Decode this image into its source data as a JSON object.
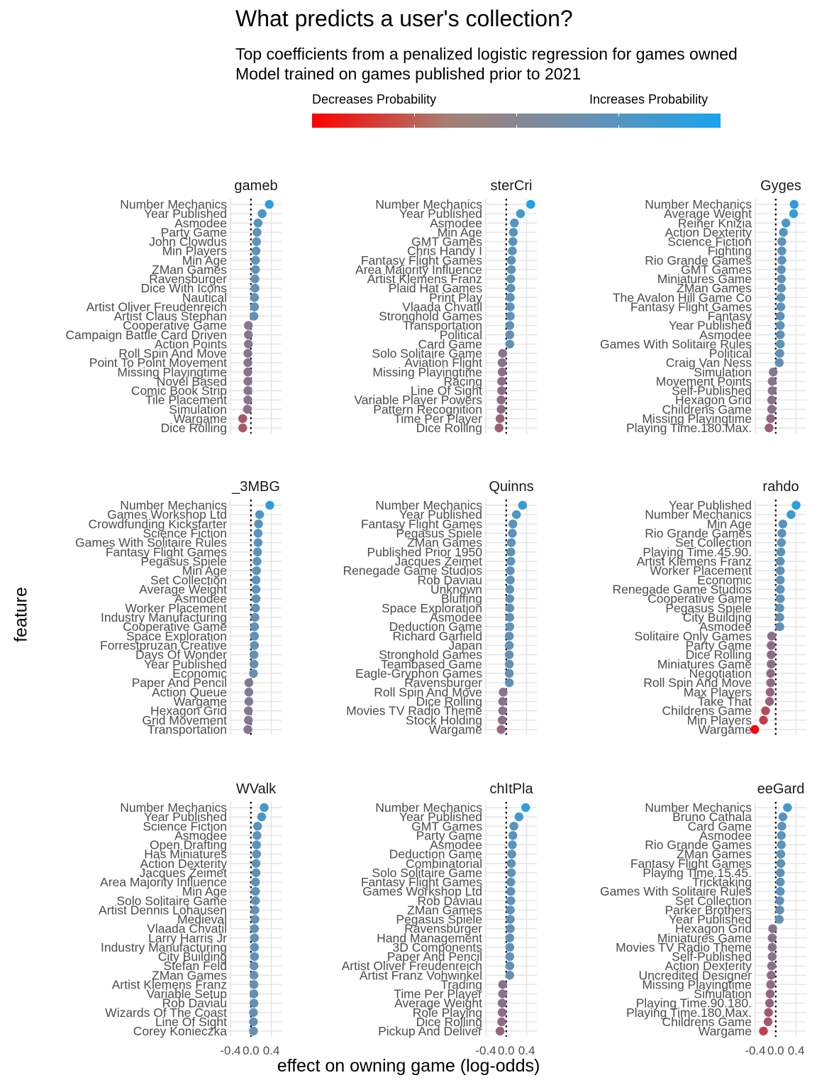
{
  "chart_data": {
    "type": "scatter",
    "title": "What predicts a user's collection?",
    "subtitle": [
      "Top coefficients from a penalized logistic regression for games owned",
      "Model trained on games published prior to 2021"
    ],
    "xlabel": "effect on owning game (log-odds)",
    "ylabel": "feature",
    "legend": {
      "low_label": "Decreases Probability",
      "high_label": "Increases Probability",
      "placement": "top",
      "low_color": "#ff0000",
      "high_color": "#1aa3ec"
    },
    "x_ticks": [
      "-0.4",
      "0.0",
      "0.4"
    ],
    "xlim": [
      -0.4,
      0.6
    ],
    "reference_line": 0,
    "panels": [
      {
        "title": "gameb",
        "features": [
          [
            "Number Mechanics",
            0.36
          ],
          [
            "Year Published",
            0.22
          ],
          [
            "Asmodee",
            0.14
          ],
          [
            "Party Game",
            0.12
          ],
          [
            "John Clowdus",
            0.11
          ],
          [
            "Min Players",
            0.1
          ],
          [
            "Min Age",
            0.09
          ],
          [
            "ZMan Games",
            0.09
          ],
          [
            "Ravensburger",
            0.08
          ],
          [
            "Dice With Icons",
            0.08
          ],
          [
            "Nautical",
            0.07
          ],
          [
            "Artist Oliver Freudenreich",
            0.07
          ],
          [
            "Artist Claus Stephan",
            0.06
          ],
          [
            "Cooperative Game",
            -0.05
          ],
          [
            "Campaign Battle Card Driven",
            -0.05
          ],
          [
            "Action Points",
            -0.05
          ],
          [
            "Roll Spin And Move",
            -0.06
          ],
          [
            "Point To Point Movement",
            -0.06
          ],
          [
            "Missing Playingtime",
            -0.06
          ],
          [
            "Novel Based",
            -0.06
          ],
          [
            "Comic Book Strip",
            -0.06
          ],
          [
            "Tile Placement",
            -0.06
          ],
          [
            "Simulation",
            -0.07
          ],
          [
            "Wargame",
            -0.16
          ],
          [
            "Dice Rolling",
            -0.16
          ]
        ]
      },
      {
        "title": "sterCri",
        "features": [
          [
            "Number Mechanics",
            0.48
          ],
          [
            "Year Published",
            0.28
          ],
          [
            "Asmodee",
            0.16
          ],
          [
            "Min Age",
            0.14
          ],
          [
            "GMT Games",
            0.13
          ],
          [
            "Chris Handy I",
            0.12
          ],
          [
            "Fantasy Flight Games",
            0.1
          ],
          [
            "Area Majority Influence",
            0.1
          ],
          [
            "Artist Klemens Franz",
            0.09
          ],
          [
            "Plaid Hat Games",
            0.09
          ],
          [
            "Print Play",
            0.08
          ],
          [
            "Vlaada Chvatil",
            0.08
          ],
          [
            "Stronghold Games",
            0.08
          ],
          [
            "Transportation",
            0.07
          ],
          [
            "Political",
            0.07
          ],
          [
            "Card Game",
            0.07
          ],
          [
            "Solo Solitaire Game",
            -0.07
          ],
          [
            "Aviation Flight",
            -0.08
          ],
          [
            "Missing Playingtime",
            -0.08
          ],
          [
            "Racing",
            -0.09
          ],
          [
            "Line Of Sight",
            -0.09
          ],
          [
            "Variable Player Powers",
            -0.1
          ],
          [
            "Pattern Recognition",
            -0.1
          ],
          [
            "Time Per Player",
            -0.12
          ],
          [
            "Dice Rolling",
            -0.14
          ]
        ]
      },
      {
        "title": "Gyges",
        "features": [
          [
            "Number Mechanics",
            0.36
          ],
          [
            "Average Weight",
            0.35
          ],
          [
            "Reiner Knizia",
            0.2
          ],
          [
            "Action Dexterity",
            0.15
          ],
          [
            "Science Fiction",
            0.12
          ],
          [
            "Fighting",
            0.12
          ],
          [
            "Rio Grande Games",
            0.12
          ],
          [
            "GMT Games",
            0.11
          ],
          [
            "Miniatures Game",
            0.11
          ],
          [
            "ZMan Games",
            0.11
          ],
          [
            "The Avalon Hill Game Co",
            0.1
          ],
          [
            "Fantasy Flight Games",
            0.1
          ],
          [
            "Fantasy",
            0.09
          ],
          [
            "Year Published",
            0.09
          ],
          [
            "Asmodee",
            0.09
          ],
          [
            "Games With Solitaire Rules",
            0.09
          ],
          [
            "Political",
            0.08
          ],
          [
            "Craig Van Ness",
            0.07
          ],
          [
            "Simulation",
            -0.05
          ],
          [
            "Movement Points",
            -0.07
          ],
          [
            "Self-Published",
            -0.07
          ],
          [
            "Hexagon Grid",
            -0.08
          ],
          [
            "Childrens Game",
            -0.08
          ],
          [
            "Missing Playingtime",
            -0.1
          ],
          [
            "Playing Time.180.Max.",
            -0.13
          ]
        ]
      },
      {
        "title": "_3MBG",
        "features": [
          [
            "Number Mechanics",
            0.37
          ],
          [
            "Games Workshop Ltd",
            0.17
          ],
          [
            "Crowdfunding Kickstarter",
            0.15
          ],
          [
            "Science Fiction",
            0.14
          ],
          [
            "Games With Solitaire Rules",
            0.14
          ],
          [
            "Fantasy Flight Games",
            0.13
          ],
          [
            "Pegasus Spiele",
            0.12
          ],
          [
            "Min Age",
            0.11
          ],
          [
            "Set Collection",
            0.1
          ],
          [
            "Average Weight",
            0.1
          ],
          [
            "Asmodee",
            0.1
          ],
          [
            "Worker Placement",
            0.09
          ],
          [
            "Industry Manufacturing",
            0.08
          ],
          [
            "Cooperative Game",
            0.07
          ],
          [
            "Space Exploration",
            0.07
          ],
          [
            "Forrestpruzan Creative",
            0.07
          ],
          [
            "Days Of Wonder",
            0.06
          ],
          [
            "Year Published",
            0.06
          ],
          [
            "Economic",
            0.05
          ],
          [
            "Paper And Pencil",
            -0.04
          ],
          [
            "Action Queue",
            -0.04
          ],
          [
            "Wargame",
            -0.04
          ],
          [
            "Hexagon Grid",
            -0.05
          ],
          [
            "Grid Movement",
            -0.05
          ],
          [
            "Transportation",
            -0.06
          ]
        ]
      },
      {
        "title": "Quinns",
        "features": [
          [
            "Number Mechanics",
            0.32
          ],
          [
            "Year Published",
            0.2
          ],
          [
            "Fantasy Flight Games",
            0.13
          ],
          [
            "Pegasus Spiele",
            0.12
          ],
          [
            "ZMan Games",
            0.1
          ],
          [
            "Published Prior 1950",
            0.09
          ],
          [
            "Jacques Zeimet",
            0.09
          ],
          [
            "Renegade Game Studios",
            0.08
          ],
          [
            "Rob Daviau",
            0.08
          ],
          [
            "Unknown",
            0.07
          ],
          [
            "Bluffing",
            0.07
          ],
          [
            "Space Exploration",
            0.07
          ],
          [
            "Asmodee",
            0.07
          ],
          [
            "Deduction Game",
            0.07
          ],
          [
            "Richard Garfield",
            0.06
          ],
          [
            "Japan",
            0.06
          ],
          [
            "Stronghold Games",
            0.06
          ],
          [
            "Teambased Game",
            0.06
          ],
          [
            "Eagle-Gryphon Games",
            0.06
          ],
          [
            "Ravensburger",
            0.06
          ],
          [
            "Roll Spin And Move",
            -0.06
          ],
          [
            "Dice Rolling",
            -0.07
          ],
          [
            "Movies TV Radio Theme",
            -0.07
          ],
          [
            "Stock Holding",
            -0.08
          ],
          [
            "Wargame",
            -0.1
          ]
        ]
      },
      {
        "title": "rahdo",
        "features": [
          [
            "Year Published",
            0.4
          ],
          [
            "Number Mechanics",
            0.3
          ],
          [
            "Min Age",
            0.14
          ],
          [
            "Rio Grande Games",
            0.12
          ],
          [
            "Set Collection",
            0.11
          ],
          [
            "Playing Time.45.90.",
            0.1
          ],
          [
            "Artist Klemens Franz",
            0.09
          ],
          [
            "Worker Placement",
            0.09
          ],
          [
            "Economic",
            0.09
          ],
          [
            "Renegade Game Studios",
            0.09
          ],
          [
            "Cooperative Game",
            0.09
          ],
          [
            "Pegasus Spiele",
            0.08
          ],
          [
            "City Building",
            0.08
          ],
          [
            "Asmodee",
            0.08
          ],
          [
            "Solitaire Only Games",
            -0.08
          ],
          [
            "Party Game",
            -0.09
          ],
          [
            "Dice Rolling",
            -0.09
          ],
          [
            "Miniatures Game",
            -0.09
          ],
          [
            "Negotiation",
            -0.1
          ],
          [
            "Roll Spin And Move",
            -0.1
          ],
          [
            "Max Players",
            -0.11
          ],
          [
            "Take That",
            -0.12
          ],
          [
            "Childrens Game",
            -0.2
          ],
          [
            "Min Players",
            -0.24
          ],
          [
            "Wargame",
            -0.41
          ]
        ]
      },
      {
        "title": "WValk",
        "features": [
          [
            "Number Mechanics",
            0.26
          ],
          [
            "Year Published",
            0.21
          ],
          [
            "Science Fiction",
            0.13
          ],
          [
            "Asmodee",
            0.12
          ],
          [
            "Open Drafting",
            0.11
          ],
          [
            "Has Miniatures",
            0.11
          ],
          [
            "Action Dexterity",
            0.1
          ],
          [
            "Jacques Zeimet",
            0.1
          ],
          [
            "Area Majority Influence",
            0.09
          ],
          [
            "Min Age",
            0.09
          ],
          [
            "Solo Solitaire Game",
            0.09
          ],
          [
            "Artist Dennis Lohausen",
            0.08
          ],
          [
            "Medieval",
            0.08
          ],
          [
            "Vlaada Chvatil",
            0.07
          ],
          [
            "Larry Harris Jr",
            0.07
          ],
          [
            "Industry Manufacturing",
            0.07
          ],
          [
            "City Building",
            0.07
          ],
          [
            "Stefan Feld",
            0.06
          ],
          [
            "ZMan Games",
            0.06
          ],
          [
            "Artist Klemens Franz",
            0.06
          ],
          [
            "Variable Setup",
            0.06
          ],
          [
            "Rob Daviau",
            0.06
          ],
          [
            "Wizards Of The Coast",
            0.05
          ],
          [
            "Line Of Sight",
            0.05
          ],
          [
            "Corey Konieczka",
            0.05
          ]
        ]
      },
      {
        "title": "chItPla",
        "features": [
          [
            "Number Mechanics",
            0.38
          ],
          [
            "Year Published",
            0.25
          ],
          [
            "GMT Games",
            0.15
          ],
          [
            "Party Game",
            0.13
          ],
          [
            "Asmodee",
            0.12
          ],
          [
            "Deduction Game",
            0.11
          ],
          [
            "Combinatorial",
            0.1
          ],
          [
            "Solo Solitaire Game",
            0.1
          ],
          [
            "Fantasy Flight Games",
            0.09
          ],
          [
            "Games Workshop Ltd",
            0.09
          ],
          [
            "Rob Daviau",
            0.09
          ],
          [
            "ZMan Games",
            0.08
          ],
          [
            "Pegasus Spiele",
            0.08
          ],
          [
            "Ravensburger",
            0.08
          ],
          [
            "Hand Management",
            0.07
          ],
          [
            "3D Components",
            0.07
          ],
          [
            "Paper And Pencil",
            0.07
          ],
          [
            "Artist Oliver Freudenreich",
            0.07
          ],
          [
            "Artist Franz Vohwinkel",
            0.07
          ],
          [
            "Trading",
            -0.07
          ],
          [
            "Time Per Player",
            -0.07
          ],
          [
            "Average Weight",
            -0.08
          ],
          [
            "Role Playing",
            -0.08
          ],
          [
            "Dice Rolling",
            -0.09
          ],
          [
            "Pickup And Deliver",
            -0.12
          ]
        ]
      },
      {
        "title": "eeGard",
        "features": [
          [
            "Number Mechanics",
            0.23
          ],
          [
            "Bruno Cathala",
            0.14
          ],
          [
            "Card Game",
            0.12
          ],
          [
            "Asmodee",
            0.11
          ],
          [
            "Rio Grande Games",
            0.11
          ],
          [
            "ZMan Games",
            0.1
          ],
          [
            "Fantasy Flight Games",
            0.1
          ],
          [
            "Playing Time.15.45.",
            0.09
          ],
          [
            "Tricktaking",
            0.09
          ],
          [
            "Games With Solitaire Rules",
            0.09
          ],
          [
            "Set Collection",
            0.08
          ],
          [
            "Parker Brothers",
            0.08
          ],
          [
            "Year Published",
            0.07
          ],
          [
            "Hexagon Grid",
            -0.06
          ],
          [
            "Miniatures Game",
            -0.07
          ],
          [
            "Movies TV Radio Theme",
            -0.07
          ],
          [
            "Self-Published",
            -0.07
          ],
          [
            "Action Dexterity",
            -0.08
          ],
          [
            "Uncredited Designer",
            -0.09
          ],
          [
            "Missing Playingtime",
            -0.1
          ],
          [
            "Simulation",
            -0.11
          ],
          [
            "Playing Time.90.180.",
            -0.12
          ],
          [
            "Playing Time.180.Max.",
            -0.14
          ],
          [
            "Childrens Game",
            -0.15
          ],
          [
            "Wargame",
            -0.24
          ]
        ]
      }
    ]
  }
}
